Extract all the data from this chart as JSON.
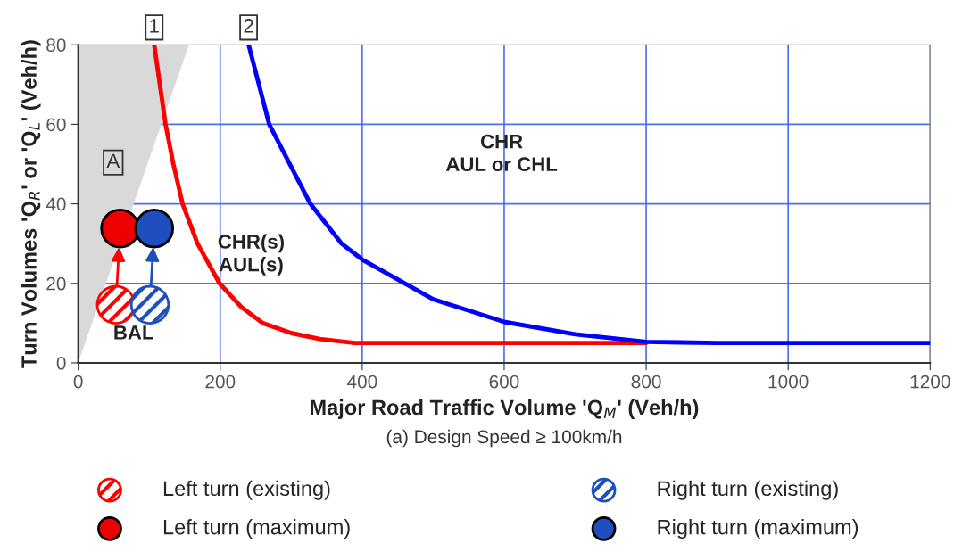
{
  "chart_data": {
    "type": "line",
    "xlabel": "Major Road Traffic Volume 'Q$_{M}$' (Veh/h)",
    "ylabel": "Turn Volumes 'Q$_{R}$' or 'Q$_{L}$' (Veh/h)",
    "xlim": [
      0,
      1200
    ],
    "ylim": [
      0,
      80
    ],
    "xticks": [
      0,
      200,
      400,
      600,
      800,
      1000,
      1200
    ],
    "yticks": [
      0,
      20,
      40,
      60,
      80
    ],
    "grid": true,
    "legend": "bottom",
    "series": [
      {
        "type": "area",
        "color": "#d9d9d9",
        "x": [
          0,
          156
        ],
        "values": [
          0,
          80
        ]
      },
      {
        "color": "#ff0000",
        "x": [
          107,
          115,
          123,
          134,
          147,
          168,
          199,
          230,
          260,
          300,
          340,
          390,
          800
        ],
        "values": [
          80,
          70,
          60,
          50,
          40,
          30,
          20,
          14,
          10,
          7.5,
          6,
          5,
          5
        ]
      },
      {
        "color": "#0000ff",
        "x": [
          240,
          269,
          327,
          371,
          400,
          500,
          600,
          700,
          800,
          900,
          1200
        ],
        "values": [
          80,
          60,
          40,
          30,
          26,
          16,
          10.3,
          7.2,
          5.3,
          5,
          5
        ]
      },
      {
        "type": "scatter",
        "name": "Left turn (existing)",
        "color": "#ff0000",
        "marker": "circle",
        "x": [
          53
        ],
        "values": [
          14.6
        ]
      },
      {
        "type": "scatter",
        "name": "Left turn (maximum)",
        "color": "#ee0000",
        "marker": "circle",
        "x": [
          59
        ],
        "values": [
          33.8
        ]
      },
      {
        "type": "scatter",
        "name": "Right turn (existing)",
        "color": "#1f4fbf",
        "marker": "circle",
        "x": [
          101
        ],
        "values": [
          14.6
        ]
      },
      {
        "type": "scatter",
        "name": "Right turn (maximum)",
        "color": "#1f4fbf",
        "marker": "circle",
        "x": [
          107
        ],
        "values": [
          33.8
        ]
      }
    ],
    "annotations": [
      {
        "text": "1",
        "x": 107,
        "y": 80
      },
      {
        "text": "2",
        "x": 240,
        "y": 80
      },
      "A",
      "CHR(s)\nAUL(s)",
      "CHR\nAUL or CHL",
      "BAL",
      "(a) Design Speed ≥ 100km/h"
    ]
  }
}
